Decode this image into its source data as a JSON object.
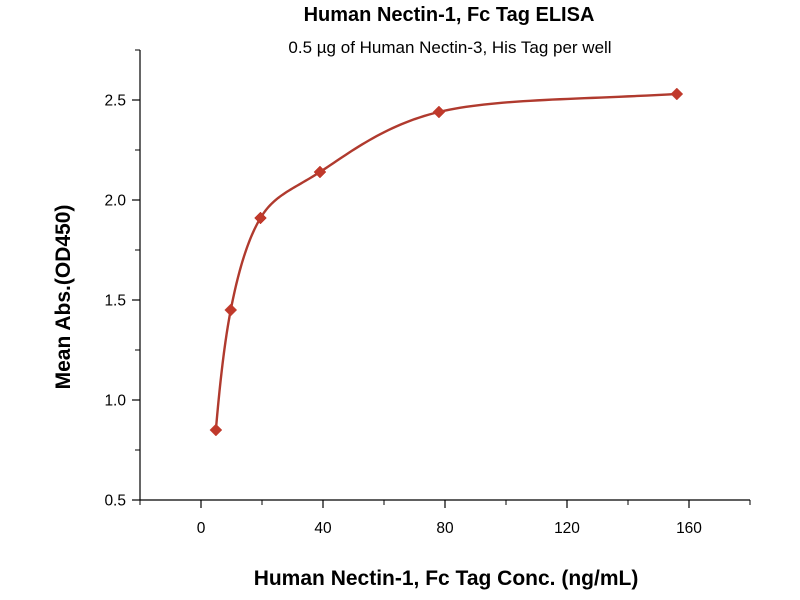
{
  "chart_data": {
    "type": "scatter",
    "title": "Human Nectin-1, Fc Tag ELISA",
    "subtitle": "0.5 µg of Human Nectin-3, His Tag per well",
    "xlabel": "Human Nectin-1, Fc Tag Conc. (ng/mL)",
    "ylabel": "Mean Abs.(OD450)",
    "xlim": [
      -20,
      180
    ],
    "ylim": [
      0.5,
      2.75
    ],
    "x_ticks": [
      0,
      40,
      80,
      120,
      160
    ],
    "x_tick_labels": [
      "0",
      "40",
      "80",
      "120",
      "160"
    ],
    "y_ticks": [
      0.5,
      1.0,
      1.5,
      2.0,
      2.5
    ],
    "y_tick_labels": [
      "0.5",
      "1.0",
      "1.5",
      "2.0",
      "2.5"
    ],
    "grid": false,
    "legend": "none",
    "series": [
      {
        "x": [
          4.875,
          9.75,
          19.5,
          39,
          78,
          156
        ],
        "y": [
          0.85,
          1.45,
          1.91,
          2.14,
          2.44,
          2.53
        ],
        "marker": "diamond",
        "fit_curve": true
      }
    ],
    "colors": {
      "marker": "#C0392B",
      "curve": "#B03A2E",
      "axis": "#000000"
    }
  }
}
